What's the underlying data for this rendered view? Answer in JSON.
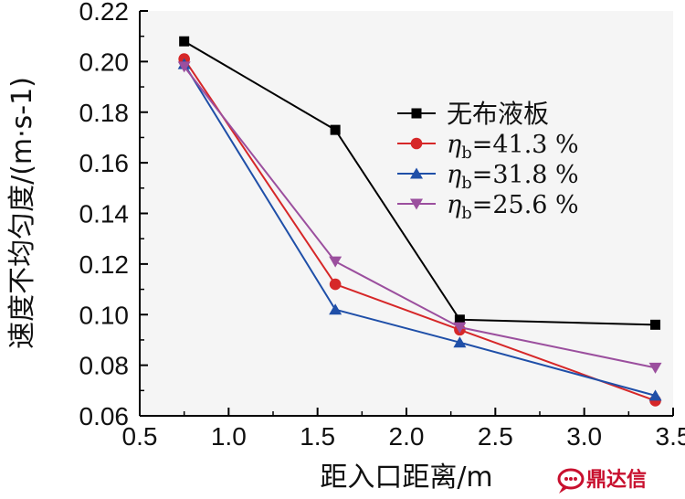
{
  "chart_data": {
    "type": "line",
    "xlabel": "距入口距离/m",
    "ylabel": "速度不均匀度/(m·s-1)",
    "xlim": [
      0.5,
      3.5
    ],
    "ylim": [
      0.06,
      0.22
    ],
    "xticks": [
      "0.5",
      "1.0",
      "1.5",
      "2.0",
      "2.5",
      "3.0",
      "3.5"
    ],
    "yticks": [
      "0.06",
      "0.08",
      "0.10",
      "0.12",
      "0.14",
      "0.16",
      "0.18",
      "0.20",
      "0.22"
    ],
    "x": [
      0.75,
      1.6,
      2.3,
      3.4
    ],
    "grid": false,
    "legend_position": "top-right",
    "series": [
      {
        "name": "无布液板",
        "sub": "",
        "rest": "",
        "marker": "square",
        "color": "#000000",
        "values": [
          0.208,
          0.173,
          0.098,
          0.096
        ]
      },
      {
        "name": "η",
        "sub": "b",
        "rest": "=41.3 %",
        "marker": "circle",
        "color": "#d62728",
        "values": [
          0.201,
          0.112,
          0.094,
          0.066
        ]
      },
      {
        "name": "η",
        "sub": "b",
        "rest": "=31.8 %",
        "marker": "triangle-up",
        "color": "#1f4fa8",
        "values": [
          0.199,
          0.102,
          0.089,
          0.068
        ]
      },
      {
        "name": "η",
        "sub": "b",
        "rest": "=25.6 %",
        "marker": "triangle-down",
        "color": "#9b4f9e",
        "values": [
          0.198,
          0.121,
          0.095,
          0.079
        ]
      }
    ]
  },
  "watermark": {
    "text": "鼎达信",
    "icon": "chat-bubble-logo-icon",
    "color": "#c8102e"
  }
}
